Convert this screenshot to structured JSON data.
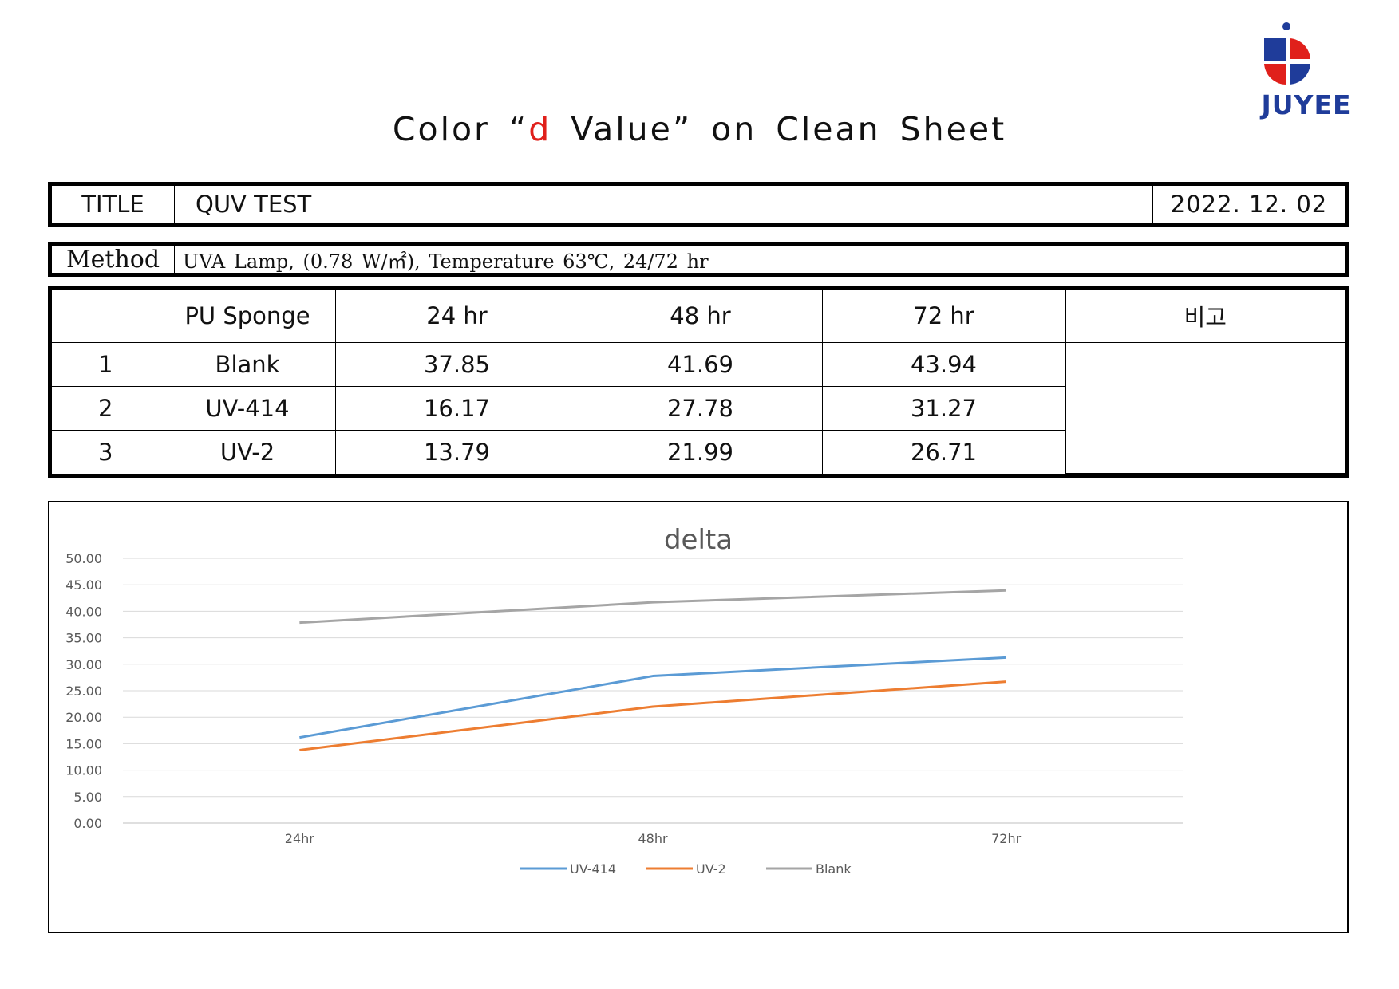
{
  "logo": {
    "text": "JUYEE",
    "colors": {
      "blue": "#1f3c9a",
      "red": "#e0201b"
    }
  },
  "page_title": {
    "before": "Color “",
    "accent": "d",
    "after": " Value” on Clean Sheet",
    "accent_color": "#e0201b"
  },
  "title_row": {
    "label": "TITLE",
    "value": "QUV TEST",
    "date": "2022. 12. 02"
  },
  "method_row": {
    "label": "Method",
    "value": "UVA Lamp, (0.78 W/㎡), Temperature 63℃, 24/72 hr"
  },
  "table": {
    "headers": [
      "",
      "PU Sponge",
      "24 hr",
      "48 hr",
      "72 hr",
      "비고"
    ],
    "rows": [
      [
        "1",
        "Blank",
        "37.85",
        "41.69",
        "43.94"
      ],
      [
        "2",
        "UV-414",
        "16.17",
        "27.78",
        "31.27"
      ],
      [
        "3",
        "UV-2",
        "13.79",
        "21.99",
        "26.71"
      ]
    ]
  },
  "chart_data": {
    "type": "line",
    "title": "delta",
    "categories": [
      "24hr",
      "48hr",
      "72hr"
    ],
    "ylim": [
      0,
      50
    ],
    "ytick_step": 5,
    "ytick_labels": [
      "0.00",
      "5.00",
      "10.00",
      "15.00",
      "20.00",
      "25.00",
      "30.00",
      "35.00",
      "40.00",
      "45.00",
      "50.00"
    ],
    "grid": true,
    "legend_position": "bottom",
    "series": [
      {
        "name": "UV-414",
        "values": [
          16.17,
          27.78,
          31.27
        ],
        "color": "#5b9bd5"
      },
      {
        "name": "UV-2",
        "values": [
          13.79,
          21.99,
          26.71
        ],
        "color": "#ed7d31"
      },
      {
        "name": "Blank",
        "values": [
          37.85,
          41.69,
          43.94
        ],
        "color": "#a5a5a5"
      }
    ]
  }
}
